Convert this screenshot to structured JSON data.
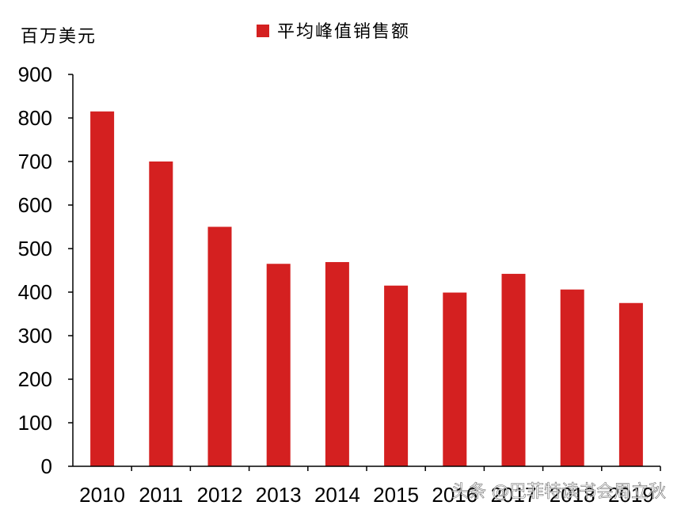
{
  "chart_data": {
    "type": "bar",
    "unit_label": "百万美元",
    "categories": [
      "2010",
      "2011",
      "2012",
      "2013",
      "2014",
      "2015",
      "2016",
      "2017",
      "2018",
      "2019"
    ],
    "series": [
      {
        "name": "平均峰值销售额",
        "values": [
          815,
          700,
          550,
          465,
          469,
          415,
          399,
          442,
          406,
          375
        ]
      }
    ],
    "ylim": [
      0,
      900
    ],
    "yticks": [
      0,
      100,
      200,
      300,
      400,
      500,
      600,
      700,
      800,
      900
    ],
    "grid": false,
    "legend_position": "top-center",
    "colors": {
      "bar": "#d42020",
      "axis": "#000000"
    }
  },
  "watermark": "头条 @巴菲特读书会周立秋"
}
